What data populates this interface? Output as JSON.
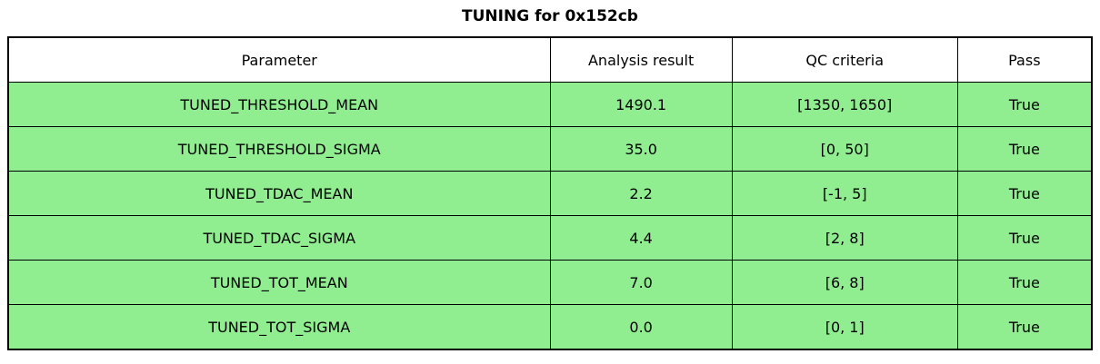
{
  "title": "TUNING for 0x152cb",
  "chart_data": {
    "type": "table",
    "title": "TUNING for 0x152cb",
    "columns": [
      "Parameter",
      "Analysis result",
      "QC criteria",
      "Pass"
    ],
    "rows": [
      [
        "TUNED_THRESHOLD_MEAN",
        "1490.1",
        "[1350, 1650]",
        "True"
      ],
      [
        "TUNED_THRESHOLD_SIGMA",
        "35.0",
        "[0, 50]",
        "True"
      ],
      [
        "TUNED_TDAC_MEAN",
        "2.2",
        "[-1, 5]",
        "True"
      ],
      [
        "TUNED_TDAC_SIGMA",
        "4.4",
        "[2, 8]",
        "True"
      ],
      [
        "TUNED_TOT_MEAN",
        "7.0",
        "[6, 8]",
        "True"
      ],
      [
        "TUNED_TOT_SIGMA",
        "0.0",
        "[0, 1]",
        "True"
      ]
    ],
    "layout": {
      "header_background": "#ffffff",
      "pass_row_background": "#90ee90",
      "border_color": "#000000",
      "text_color": "#000000"
    }
  }
}
